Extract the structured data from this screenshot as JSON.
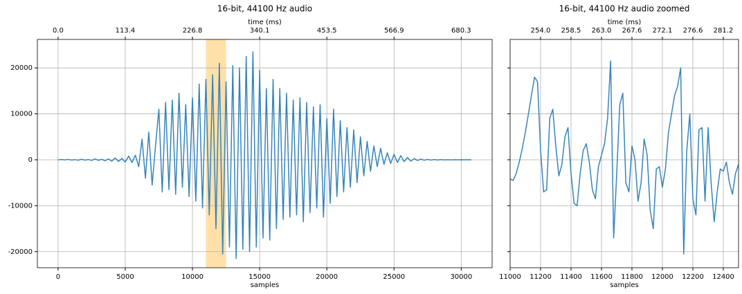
{
  "chart_data": [
    {
      "type": "line",
      "title": "16-bit, 44100 Hz audio",
      "x_label": "samples",
      "x2_label": "time (ms)",
      "xlim": [
        -1540,
        32300
      ],
      "ylim": [
        -23500,
        26200
      ],
      "xticks": [
        0,
        5000,
        10000,
        15000,
        20000,
        25000,
        30000
      ],
      "x2ticks": [
        {
          "value": 0,
          "label": "0.0"
        },
        {
          "value": 5000,
          "label": "113.4"
        },
        {
          "value": 10000,
          "label": "226.8"
        },
        {
          "value": 15000,
          "label": "340.1"
        },
        {
          "value": 20000,
          "label": "453.5"
        },
        {
          "value": 25000,
          "label": "566.9"
        },
        {
          "value": 30000,
          "label": "680.3"
        }
      ],
      "yticks": [
        -20000,
        -10000,
        0,
        10000,
        20000
      ],
      "grid": true,
      "span": {
        "x": [
          11000,
          12500
        ],
        "color": "#ffe0a8"
      },
      "x": [
        0,
        250,
        500,
        750,
        1000,
        1250,
        1500,
        1750,
        2000,
        2250,
        2500,
        2750,
        3000,
        3250,
        3500,
        3750,
        4000,
        4250,
        4500,
        4750,
        5000,
        5250,
        5500,
        5750,
        6000,
        6250,
        6500,
        6750,
        7000,
        7250,
        7500,
        7750,
        8000,
        8250,
        8500,
        8750,
        9000,
        9250,
        9500,
        9750,
        10000,
        10250,
        10500,
        10750,
        11000,
        11250,
        11500,
        11750,
        12000,
        12250,
        12500,
        12750,
        13000,
        13250,
        13500,
        13750,
        14000,
        14250,
        14500,
        14750,
        15000,
        15250,
        15500,
        15750,
        16000,
        16250,
        16500,
        16750,
        17000,
        17250,
        17500,
        17750,
        18000,
        18250,
        18500,
        18750,
        19000,
        19250,
        19500,
        19750,
        20000,
        20250,
        20500,
        20750,
        21000,
        21250,
        21500,
        21750,
        22000,
        22250,
        22500,
        22750,
        23000,
        23250,
        23500,
        23750,
        24000,
        24250,
        24500,
        24750,
        25000,
        25250,
        25500,
        25750,
        26000,
        26250,
        26500,
        26750,
        27000,
        27250,
        27500,
        27750,
        28000,
        28250,
        28500,
        28750,
        29000,
        29250,
        29500,
        29750,
        30000,
        30250,
        30500,
        30750
      ],
      "series": [
        {
          "name": "audio",
          "color": "#3584bb",
          "values": [
            0,
            50,
            -30,
            80,
            -60,
            40,
            -100,
            120,
            -80,
            60,
            -150,
            200,
            -120,
            90,
            -200,
            180,
            -300,
            400,
            -350,
            300,
            -500,
            800,
            -600,
            1000,
            -1500,
            4500,
            -4000,
            6000,
            -5500,
            3000,
            11000,
            -7000,
            12500,
            -6500,
            13000,
            -7500,
            14500,
            -6000,
            12000,
            -8000,
            13500,
            -9000,
            16500,
            -10500,
            17500,
            -12000,
            18500,
            -15000,
            21000,
            -20500,
            17000,
            -19000,
            20500,
            -21500,
            20000,
            -19500,
            22500,
            -20000,
            23500,
            -19000,
            19500,
            -17000,
            15500,
            -17500,
            17500,
            -15000,
            15500,
            -13000,
            14500,
            -12500,
            13000,
            -12000,
            13500,
            -13500,
            12500,
            -11500,
            11500,
            -10500,
            12000,
            -12500,
            9000,
            -9500,
            11000,
            -8000,
            8500,
            -7000,
            7000,
            -6000,
            6500,
            -5000,
            5000,
            -3500,
            4000,
            -2500,
            3000,
            -1500,
            2500,
            -1000,
            1500,
            -800,
            1200,
            -600,
            900,
            -400,
            500,
            -300,
            250,
            -150,
            150,
            -100,
            80,
            -60,
            50,
            -40,
            30,
            -30,
            20,
            -20,
            20,
            -10,
            10,
            0,
            10,
            -10
          ]
        }
      ]
    },
    {
      "type": "line",
      "title": "16-bit, 44100 Hz audio zoomed",
      "x_label": "samples",
      "x2_label": "time (ms)",
      "sharey": true,
      "xlim": [
        11000,
        12500
      ],
      "ylim": [
        -23500,
        26200
      ],
      "xticks": [
        11000,
        11200,
        11400,
        11600,
        11800,
        12000,
        12200,
        12400
      ],
      "x2ticks": [
        {
          "value": 11200,
          "label": "254.0"
        },
        {
          "value": 11400,
          "label": "258.5"
        },
        {
          "value": 11600,
          "label": "263.0"
        },
        {
          "value": 11800,
          "label": "267.6"
        },
        {
          "value": 12000,
          "label": "272.1"
        },
        {
          "value": 12200,
          "label": "276.6"
        },
        {
          "value": 12400,
          "label": "281.2"
        }
      ],
      "yticks": [
        -20000,
        -10000,
        0,
        10000,
        20000
      ],
      "grid": true,
      "x": [
        11000,
        11020,
        11040,
        11060,
        11080,
        11100,
        11120,
        11140,
        11160,
        11180,
        11200,
        11220,
        11240,
        11260,
        11280,
        11300,
        11320,
        11340,
        11360,
        11380,
        11400,
        11420,
        11440,
        11460,
        11480,
        11500,
        11520,
        11540,
        11560,
        11580,
        11600,
        11620,
        11640,
        11660,
        11680,
        11700,
        11720,
        11740,
        11760,
        11780,
        11800,
        11820,
        11840,
        11860,
        11880,
        11900,
        11920,
        11940,
        11960,
        11980,
        12000,
        12020,
        12040,
        12060,
        12080,
        12100,
        12120,
        12140,
        12160,
        12180,
        12200,
        12220,
        12240,
        12260,
        12280,
        12300,
        12320,
        12340,
        12360,
        12380,
        12400,
        12420,
        12440,
        12460,
        12480,
        12500
      ],
      "series": [
        {
          "name": "audio",
          "color": "#3584bb",
          "values": [
            -4200,
            -4500,
            -3000,
            -500,
            2500,
            6000,
            10000,
            14000,
            18000,
            17000,
            2000,
            -7000,
            -6500,
            9000,
            11000,
            3000,
            -3500,
            -1000,
            5000,
            7000,
            -3000,
            -9500,
            -10000,
            -3000,
            2000,
            3500,
            -500,
            -6500,
            -8500,
            -1500,
            1000,
            3500,
            9000,
            21500,
            -17000,
            -3000,
            12000,
            14500,
            -5000,
            -7000,
            3000,
            0,
            -9000,
            -5000,
            4500,
            1000,
            -11000,
            -15000,
            -2000,
            -1500,
            -6000,
            -2000,
            6000,
            10000,
            14000,
            16000,
            20000,
            -20500,
            2000,
            10000,
            -8500,
            -12000,
            6500,
            7000,
            -9000,
            7000,
            -5000,
            -13500,
            -7000,
            -2000,
            -2500,
            -500,
            -5000,
            -7500,
            -3000,
            -1000
          ]
        }
      ]
    }
  ]
}
